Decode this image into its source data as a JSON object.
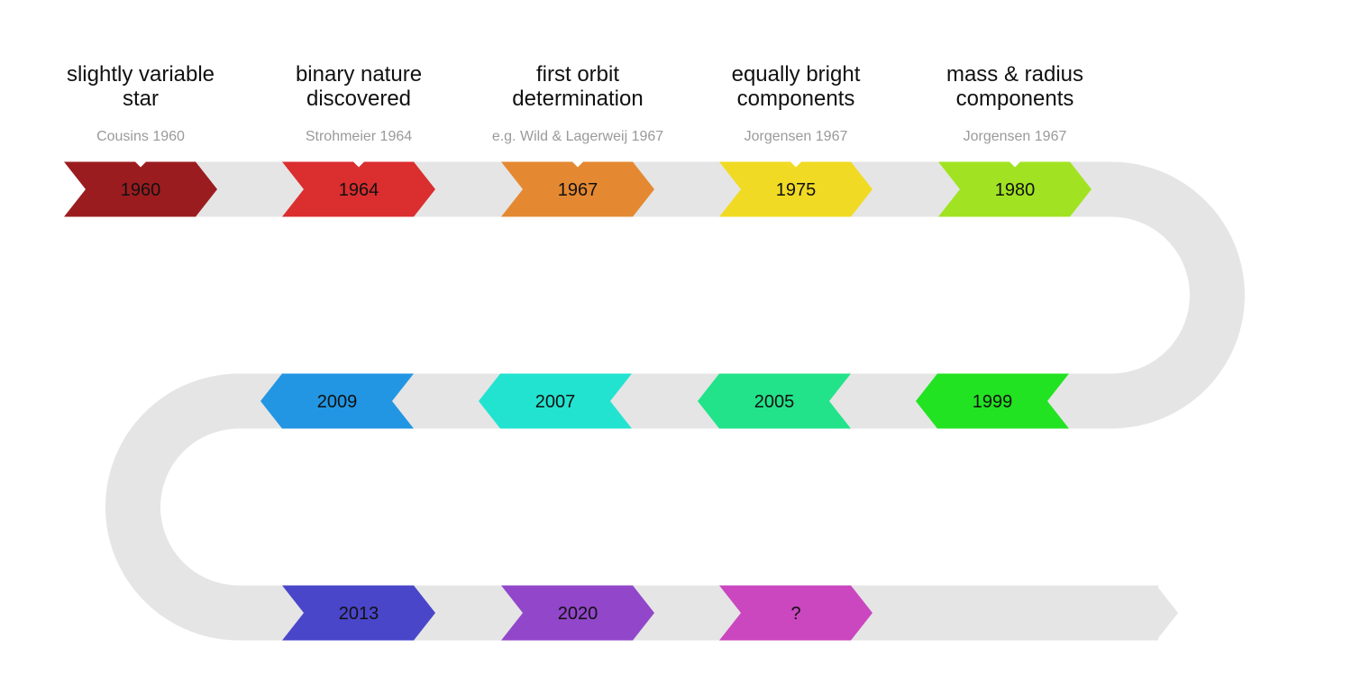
{
  "events": [
    {
      "year": "1960",
      "title_line1": "slightly variable",
      "title_line2": "star",
      "reference": "Cousins 1960",
      "color": "#9B1C1F"
    },
    {
      "year": "1964",
      "title_line1": "binary nature",
      "title_line2": "discovered",
      "reference": "Strohmeier 1964",
      "color": "#DA2E2F"
    },
    {
      "year": "1967",
      "title_line1": "first orbit",
      "title_line2": "determination",
      "reference": "e.g. Wild & Lagerweij 1967",
      "color": "#E48932"
    },
    {
      "year": "1975",
      "title_line1": "equally bright",
      "title_line2": "components",
      "reference": "Jorgensen 1967",
      "color": "#F1DA23"
    },
    {
      "year": "1980",
      "title_line1": "mass & radius",
      "title_line2": "components",
      "reference": "Jorgensen 1967",
      "color": "#A1E322"
    },
    {
      "year": "1999",
      "color": "#22E322"
    },
    {
      "year": "2005",
      "color": "#22E38A"
    },
    {
      "year": "2007",
      "color": "#22E3D0"
    },
    {
      "year": "2009",
      "color": "#2296E3"
    },
    {
      "year": "2013",
      "color": "#4A46CA"
    },
    {
      "year": "2020",
      "color": "#9247CA"
    },
    {
      "year": "?",
      "color": "#CA47C0"
    }
  ],
  "track_color": "#E5E5E5"
}
